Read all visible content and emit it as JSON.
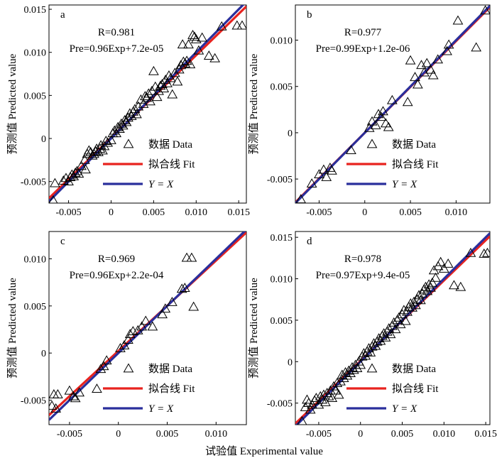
{
  "figure": {
    "xlabel": "试验值  Experimental value",
    "ylabel": "预测值  Predicted value"
  },
  "legend": {
    "data_label": "数据  Data",
    "fit_label": "拟合线  Fit",
    "yx_label": "Y = X"
  },
  "colors": {
    "fit": "#e8231f",
    "yx": "#2a2f9c",
    "marker": "#000000",
    "axes": "#000000"
  },
  "chart_data": [
    {
      "panel": "a",
      "type": "scatter",
      "r_text": "R=0.981",
      "eq_text": "Pre=0.96Exp+7.2e-05",
      "xlim": [
        -0.0073,
        0.0159
      ],
      "ylim": [
        -0.0075,
        0.0155
      ],
      "xticks": [
        -0.005,
        0,
        0.005,
        0.01,
        0.015
      ],
      "xtick_labels": [
        "-0.005",
        "0",
        "0.005",
        "0.010",
        "0.015"
      ],
      "yticks": [
        -0.005,
        0,
        0.005,
        0.01,
        0.015
      ],
      "ytick_labels": [
        "-0.005",
        "0",
        "0.005",
        "0.010",
        "0.015"
      ],
      "fit": {
        "slope": 0.96,
        "intercept": 7.2e-05
      },
      "points": [
        [
          -0.0068,
          -0.0072
        ],
        [
          -0.0066,
          -0.0052
        ],
        [
          -0.0056,
          -0.0049
        ],
        [
          -0.0053,
          -0.0046
        ],
        [
          -0.005,
          -0.005
        ],
        [
          -0.0048,
          -0.0045
        ],
        [
          -0.0046,
          -0.0042
        ],
        [
          -0.0044,
          -0.0044
        ],
        [
          -0.0042,
          -0.004
        ],
        [
          -0.004,
          -0.0038
        ],
        [
          -0.0038,
          -0.0041
        ],
        [
          -0.0035,
          -0.0032
        ],
        [
          -0.003,
          -0.0036
        ],
        [
          -0.0031,
          -0.0025
        ],
        [
          -0.0028,
          -0.0018
        ],
        [
          -0.0026,
          -0.0014
        ],
        [
          -0.0024,
          -0.0016
        ],
        [
          -0.0022,
          -0.002
        ],
        [
          -0.002,
          -0.0018
        ],
        [
          -0.0018,
          -0.0015
        ],
        [
          -0.0017,
          -0.0012
        ],
        [
          -0.0015,
          -0.0016
        ],
        [
          -0.0013,
          -0.0012
        ],
        [
          -0.0012,
          -0.0008
        ],
        [
          -0.001,
          -0.0014
        ],
        [
          -0.0008,
          -0.0009
        ],
        [
          -0.0006,
          -0.0003
        ],
        [
          -0.0004,
          -0.0005
        ],
        [
          0.0,
          -0.0002
        ],
        [
          0.0002,
          0.0006
        ],
        [
          0.0004,
          0.0009
        ],
        [
          0.0006,
          0.0006
        ],
        [
          0.0008,
          0.0013
        ],
        [
          0.001,
          0.0011
        ],
        [
          0.0012,
          0.0017
        ],
        [
          0.0014,
          0.0015
        ],
        [
          0.0016,
          0.0021
        ],
        [
          0.0018,
          0.0019
        ],
        [
          0.002,
          0.0024
        ],
        [
          0.0022,
          0.0029
        ],
        [
          0.0024,
          0.0026
        ],
        [
          0.0026,
          0.0031
        ],
        [
          0.0028,
          0.0034
        ],
        [
          0.003,
          0.0028
        ],
        [
          0.0032,
          0.0037
        ],
        [
          0.0035,
          0.0045
        ],
        [
          0.0038,
          0.004
        ],
        [
          0.004,
          0.0049
        ],
        [
          0.0042,
          0.0047
        ],
        [
          0.0044,
          0.0052
        ],
        [
          0.0046,
          0.0043
        ],
        [
          0.0048,
          0.0055
        ],
        [
          0.005,
          0.0078
        ],
        [
          0.0052,
          0.006
        ],
        [
          0.0054,
          0.0048
        ],
        [
          0.0056,
          0.0055
        ],
        [
          0.0058,
          0.0061
        ],
        [
          0.006,
          0.0063
        ],
        [
          0.0062,
          0.0058
        ],
        [
          0.0064,
          0.0068
        ],
        [
          0.0066,
          0.0064
        ],
        [
          0.0068,
          0.0073
        ],
        [
          0.007,
          0.007
        ],
        [
          0.0072,
          0.0051
        ],
        [
          0.0075,
          0.0076
        ],
        [
          0.0078,
          0.0066
        ],
        [
          0.008,
          0.008
        ],
        [
          0.0082,
          0.0085
        ],
        [
          0.0084,
          0.0109
        ],
        [
          0.0085,
          0.0089
        ],
        [
          0.0087,
          0.0087
        ],
        [
          0.0089,
          0.009
        ],
        [
          0.0091,
          0.0109
        ],
        [
          0.0093,
          0.0086
        ],
        [
          0.0096,
          0.012
        ],
        [
          0.0098,
          0.0118
        ],
        [
          0.01,
          0.0115
        ],
        [
          0.0103,
          0.0102
        ],
        [
          0.0107,
          0.0117
        ],
        [
          0.0115,
          0.0096
        ],
        [
          0.0122,
          0.0093
        ],
        [
          0.013,
          0.013
        ],
        [
          0.0148,
          0.0131
        ],
        [
          0.0154,
          0.0131
        ]
      ]
    },
    {
      "panel": "b",
      "type": "scatter",
      "r_text": "R=0.977",
      "eq_text": "Pre=0.99Exp+1.2e-06",
      "xlim": [
        -0.0076,
        0.0137
      ],
      "ylim": [
        -0.0076,
        0.0138
      ],
      "xticks": [
        -0.005,
        0,
        0.005,
        0.01
      ],
      "xtick_labels": [
        "-0.005",
        "0",
        "0.005",
        "0.010"
      ],
      "yticks": [
        -0.005,
        0,
        0.005,
        0.01
      ],
      "ytick_labels": [
        "-0.005",
        "0",
        "0.005",
        "0.010"
      ],
      "fit": {
        "slope": 0.99,
        "intercept": 1.2e-06
      },
      "points": [
        [
          -0.007,
          -0.0072
        ],
        [
          -0.0058,
          -0.0055
        ],
        [
          -0.005,
          -0.0045
        ],
        [
          -0.0045,
          -0.004
        ],
        [
          -0.0042,
          -0.0048
        ],
        [
          -0.0038,
          -0.0038
        ],
        [
          -0.0036,
          -0.0041
        ],
        [
          -0.0015,
          -0.0019
        ],
        [
          0.0005,
          0.0005
        ],
        [
          0.0008,
          0.0012
        ],
        [
          0.0012,
          0.0008
        ],
        [
          0.0015,
          0.002
        ],
        [
          0.0018,
          0.0017
        ],
        [
          0.002,
          0.0023
        ],
        [
          0.0023,
          0.001
        ],
        [
          0.0026,
          0.0006
        ],
        [
          0.003,
          0.0035
        ],
        [
          0.0047,
          0.0033
        ],
        [
          0.005,
          0.0078
        ],
        [
          0.0055,
          0.006
        ],
        [
          0.0058,
          0.0052
        ],
        [
          0.0062,
          0.0073
        ],
        [
          0.0065,
          0.0065
        ],
        [
          0.0068,
          0.0075
        ],
        [
          0.0072,
          0.0068
        ],
        [
          0.0075,
          0.0062
        ],
        [
          0.008,
          0.0079
        ],
        [
          0.009,
          0.0088
        ],
        [
          0.0092,
          0.0095
        ],
        [
          0.0102,
          0.0121
        ],
        [
          0.0122,
          0.0092
        ],
        [
          0.0132,
          0.0132
        ]
      ]
    },
    {
      "panel": "c",
      "type": "scatter",
      "r_text": "R=0.969",
      "eq_text": "Pre=0.96Exp+2.2e-04",
      "xlim": [
        -0.0071,
        0.0131
      ],
      "ylim": [
        -0.0076,
        0.0129
      ],
      "xticks": [
        -0.005,
        0,
        0.005,
        0.01
      ],
      "xtick_labels": [
        "-0.005",
        "0",
        "0.005",
        "0.010"
      ],
      "yticks": [
        -0.005,
        0,
        0.005,
        0.01
      ],
      "ytick_labels": [
        "-0.005",
        "0",
        "0.005",
        "0.010"
      ],
      "fit": {
        "slope": 0.96,
        "intercept": 0.00022
      },
      "points": [
        [
          -0.0068,
          -0.0056
        ],
        [
          -0.0066,
          -0.0044
        ],
        [
          -0.0064,
          -0.0059
        ],
        [
          -0.0062,
          -0.0044
        ],
        [
          -0.005,
          -0.004
        ],
        [
          -0.0046,
          -0.0046
        ],
        [
          -0.0044,
          -0.0048
        ],
        [
          -0.004,
          -0.0042
        ],
        [
          -0.0022,
          -0.0038
        ],
        [
          -0.0018,
          -0.0017
        ],
        [
          -0.0015,
          -0.0014
        ],
        [
          -0.0012,
          -0.0008
        ],
        [
          0.0002,
          0.0005
        ],
        [
          0.0006,
          0.0008
        ],
        [
          0.001,
          0.0014
        ],
        [
          0.0012,
          0.002
        ],
        [
          0.0015,
          0.0023
        ],
        [
          0.002,
          0.0024
        ],
        [
          0.0024,
          0.0028
        ],
        [
          0.0028,
          0.0034
        ],
        [
          0.0035,
          0.0028
        ],
        [
          0.0045,
          0.0041
        ],
        [
          0.0048,
          0.0047
        ],
        [
          0.0055,
          0.0054
        ],
        [
          0.0065,
          0.0068
        ],
        [
          0.0068,
          0.0069
        ],
        [
          0.007,
          0.0101
        ],
        [
          0.0075,
          0.0101
        ],
        [
          0.0077,
          0.0049
        ]
      ]
    },
    {
      "panel": "d",
      "type": "scatter",
      "r_text": "R=0.978",
      "eq_text": "Pre=0.97Exp+9.4e-05",
      "xlim": [
        -0.0078,
        0.0155
      ],
      "ylim": [
        -0.0076,
        0.0157
      ],
      "xticks": [
        -0.005,
        0,
        0.005,
        0.01,
        0.015
      ],
      "xtick_labels": [
        "-0.005",
        "0",
        "0.005",
        "0.010",
        "0.015"
      ],
      "yticks": [
        -0.005,
        0,
        0.005,
        0.01,
        0.015
      ],
      "ytick_labels": [
        "-0.005",
        "0",
        "0.005",
        "0.010",
        "0.015"
      ],
      "fit": {
        "slope": 0.97,
        "intercept": 9.4e-05
      },
      "points": [
        [
          -0.007,
          -0.0072
        ],
        [
          -0.0066,
          -0.0055
        ],
        [
          -0.0064,
          -0.0046
        ],
        [
          -0.0062,
          -0.005
        ],
        [
          -0.006,
          -0.0058
        ],
        [
          -0.0058,
          -0.0052
        ],
        [
          -0.0055,
          -0.0047
        ],
        [
          -0.0053,
          -0.0044
        ],
        [
          -0.005,
          -0.0052
        ],
        [
          -0.0048,
          -0.0042
        ],
        [
          -0.0046,
          -0.0046
        ],
        [
          -0.0044,
          -0.004
        ],
        [
          -0.0042,
          -0.0049
        ],
        [
          -0.004,
          -0.0038
        ],
        [
          -0.0038,
          -0.0042
        ],
        [
          -0.0036,
          -0.0035
        ],
        [
          -0.0034,
          -0.0044
        ],
        [
          -0.0032,
          -0.003
        ],
        [
          -0.003,
          -0.0035
        ],
        [
          -0.0028,
          -0.0026
        ],
        [
          -0.0026,
          -0.004
        ],
        [
          -0.0024,
          -0.0024
        ],
        [
          -0.0022,
          -0.0016
        ],
        [
          -0.002,
          -0.002
        ],
        [
          -0.0018,
          -0.0013
        ],
        [
          -0.0016,
          -0.0017
        ],
        [
          -0.0014,
          -0.0011
        ],
        [
          -0.0012,
          -0.0014
        ],
        [
          -0.001,
          -0.0007
        ],
        [
          -0.0008,
          -0.001
        ],
        [
          -0.0006,
          -0.0004
        ],
        [
          -0.0004,
          -0.0008
        ],
        [
          -0.0002,
          0.0
        ],
        [
          0.0,
          -0.0004
        ],
        [
          0.0002,
          0.0006
        ],
        [
          0.0004,
          0.001
        ],
        [
          0.0006,
          0.0007
        ],
        [
          0.0008,
          0.0012
        ],
        [
          0.001,
          0.0016
        ],
        [
          0.0012,
          0.0011
        ],
        [
          0.0014,
          0.0018
        ],
        [
          0.0016,
          0.0022
        ],
        [
          0.0018,
          0.0019
        ],
        [
          0.002,
          0.0024
        ],
        [
          0.0022,
          0.0028
        ],
        [
          0.0024,
          0.0025
        ],
        [
          0.0026,
          0.0031
        ],
        [
          0.0028,
          0.0034
        ],
        [
          0.003,
          0.0029
        ],
        [
          0.0032,
          0.0036
        ],
        [
          0.0034,
          0.004
        ],
        [
          0.0036,
          0.0033
        ],
        [
          0.0038,
          0.0043
        ],
        [
          0.004,
          0.0047
        ],
        [
          0.0042,
          0.0039
        ],
        [
          0.0044,
          0.005
        ],
        [
          0.0046,
          0.0053
        ],
        [
          0.0048,
          0.0045
        ],
        [
          0.005,
          0.0057
        ],
        [
          0.0052,
          0.0062
        ],
        [
          0.0054,
          0.0049
        ],
        [
          0.0056,
          0.006
        ],
        [
          0.0058,
          0.0066
        ],
        [
          0.006,
          0.007
        ],
        [
          0.0062,
          0.0065
        ],
        [
          0.0064,
          0.0072
        ],
        [
          0.0066,
          0.0068
        ],
        [
          0.0068,
          0.0075
        ],
        [
          0.007,
          0.008
        ],
        [
          0.0072,
          0.0074
        ],
        [
          0.0074,
          0.0082
        ],
        [
          0.0076,
          0.0087
        ],
        [
          0.0078,
          0.009
        ],
        [
          0.008,
          0.0085
        ],
        [
          0.0082,
          0.0093
        ],
        [
          0.0084,
          0.0089
        ],
        [
          0.0086,
          0.0095
        ],
        [
          0.0088,
          0.011
        ],
        [
          0.009,
          0.0101
        ],
        [
          0.0093,
          0.0115
        ],
        [
          0.0096,
          0.012
        ],
        [
          0.01,
          0.0112
        ],
        [
          0.0105,
          0.0118
        ],
        [
          0.0112,
          0.0092
        ],
        [
          0.012,
          0.009
        ],
        [
          0.0132,
          0.0131
        ],
        [
          0.0148,
          0.013
        ],
        [
          0.0152,
          0.0131
        ]
      ]
    }
  ]
}
